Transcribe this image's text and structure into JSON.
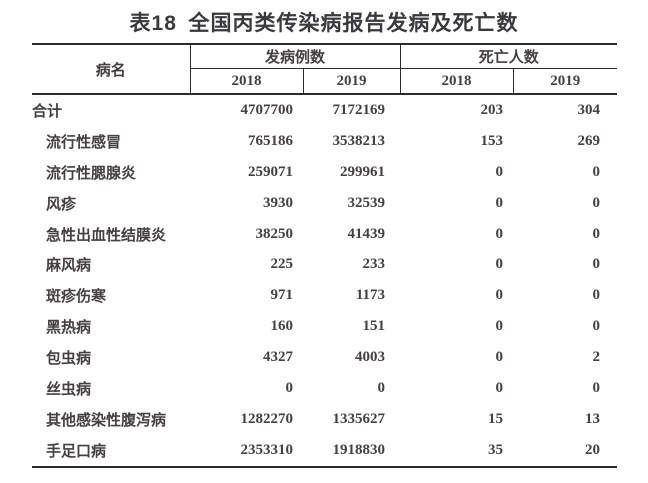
{
  "title": {
    "label": "表18",
    "text": "全国丙类传染病报告发病及死亡数"
  },
  "table": {
    "header": {
      "disease_col": "病名",
      "cases_group": "发病例数",
      "deaths_group": "死亡人数",
      "year_cols": [
        "2018",
        "2019",
        "2018",
        "2019"
      ]
    },
    "rows": [
      {
        "name": "合计",
        "indent": false,
        "values": [
          "4707700",
          "7172169",
          "203",
          "304"
        ]
      },
      {
        "name": "流行性感冒",
        "indent": true,
        "values": [
          "765186",
          "3538213",
          "153",
          "269"
        ]
      },
      {
        "name": "流行性腮腺炎",
        "indent": true,
        "values": [
          "259071",
          "299961",
          "0",
          "0"
        ]
      },
      {
        "name": "风疹",
        "indent": true,
        "values": [
          "3930",
          "32539",
          "0",
          "0"
        ]
      },
      {
        "name": "急性出血性结膜炎",
        "indent": true,
        "values": [
          "38250",
          "41439",
          "0",
          "0"
        ]
      },
      {
        "name": "麻风病",
        "indent": true,
        "values": [
          "225",
          "233",
          "0",
          "0"
        ]
      },
      {
        "name": "斑疹伤寒",
        "indent": true,
        "values": [
          "971",
          "1173",
          "0",
          "0"
        ]
      },
      {
        "name": "黑热病",
        "indent": true,
        "values": [
          "160",
          "151",
          "0",
          "0"
        ]
      },
      {
        "name": "包虫病",
        "indent": true,
        "values": [
          "4327",
          "4003",
          "0",
          "2"
        ]
      },
      {
        "name": "丝虫病",
        "indent": true,
        "values": [
          "0",
          "0",
          "0",
          "0"
        ]
      },
      {
        "name": "其他感染性腹泻病",
        "indent": true,
        "values": [
          "1282270",
          "1335627",
          "15",
          "13"
        ]
      },
      {
        "name": "手足口病",
        "indent": true,
        "values": [
          "2353310",
          "1918830",
          "35",
          "20"
        ]
      }
    ]
  },
  "colors": {
    "background": "#ffffff",
    "text": "#454041",
    "title_text": "#3a3a3c",
    "border": "#2b2b2b"
  }
}
